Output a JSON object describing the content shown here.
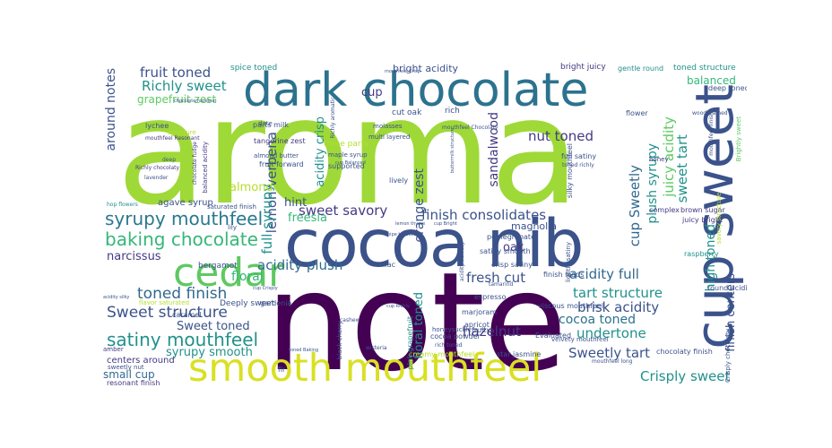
{
  "palette": {
    "c1": "#440154",
    "c2": "#3b528b",
    "c3": "#21918c",
    "c4": "#5ec962",
    "c5": "#b5de2b",
    "c6": "#fde725"
  },
  "words": {
    "aroma": "aroma",
    "note": "note",
    "cocoa_nib": "cocoa nib",
    "dark_chocolate": "dark chocolate",
    "smooth_mouthfeel": "smooth mouthfeel",
    "cup_sweet": "cup sweet",
    "cedar": "cedar",
    "syrupy_mouthfeel": "syrupy mouthfeel",
    "baking_chocolate": "baking chocolate",
    "satiny_mouthfeel": "satiny mouthfeel",
    "sweet_structure": "Sweet structure",
    "toned_finish": "toned finish",
    "finish_consolidates": "finish consolidates",
    "sweet_savory": "sweet savory",
    "acidity_plush": "acidity plush",
    "acidity_full": "acidity full",
    "fresh_cut": "fresh cut",
    "tart_structure": "tart structure",
    "brisk_acidity": "brisk acidity",
    "undertone": "undertone",
    "cocoa_toned": "cocoa toned",
    "hazelnut": "hazelnut",
    "sweetly_tart": "Sweetly tart",
    "crisply_sweet": "Crisply sweet",
    "fruit_toned": "fruit toned",
    "richly_sweet": "Richly sweet",
    "around_notes": "around notes",
    "grapefruit_zest": "grapefruit zest",
    "lemon_verbena": "lemon verbena",
    "full_syrupy": "full syrupy",
    "acidity_crisp": "acidity crisp",
    "orange_zest": "orange zest",
    "sandalwood": "sandalwood",
    "nut_toned": "nut toned",
    "juicy_acidity": "juicy acidity",
    "sweet_tart": "sweet tart",
    "plush_syrupy": "plush syrupy",
    "cup_sweetly": "cup Sweetly",
    "balanced": "balanced",
    "high_toned": "high toned",
    "finish_centers": "finish centers",
    "narcissus": "narcissus",
    "floral": "floral",
    "almond": "almond",
    "hint": "hint",
    "freesia": "freesia",
    "sweet_toned": "Sweet toned",
    "syrupy_smooth": "syrupy smooth",
    "small_cup": "small cup",
    "centers_around": "centers around",
    "resonant_finish": "resonant finish",
    "floral_toned": "floral toned",
    "oak": "oak",
    "magnolia": "magnolia",
    "cup": "cup",
    "bright_acidity": "bright acidity",
    "rich": "rich",
    "cut_oak": "cut oak",
    "spice_toned": "spice toned",
    "bright_juicy": "bright juicy",
    "gentle_round": "gentle round",
    "toned_structure": "toned structure",
    "deep_toned": "deep toned",
    "round_acidity": "round acidity",
    "brown_sugar": "brown sugar",
    "juicy_bright": "juicy bright",
    "raspberry": "raspberry",
    "flower": "flower",
    "honey": "honey",
    "complex": "complex",
    "lychee": "lychee",
    "parts_milk": "parts milk",
    "tangerine_zest": "tangerine zest",
    "three_parts": "three parts",
    "maple_syrup": "maple syrup",
    "supported": "supported",
    "lively": "lively",
    "molasses": "molasses",
    "multi_layered": "multi layered",
    "agave_syrup": "agave syrup",
    "saturated_finish": "saturated finish",
    "bergamot": "bergamot",
    "almond_butter": "almond butter",
    "fruit_forward": "fruit forward",
    "date": "date",
    "structure": "structure",
    "mouthfeel_resonant": "mouthfeel Resonant",
    "deep": "deep",
    "chocolate_fudge": "chocolate fudge",
    "balanced_acidity": "balanced acidity",
    "richly_chocolaty": "Richly chocolaty",
    "lavender": "lavender",
    "hop_flowers": "hop flowers",
    "lily": "lily",
    "gardenia": "gardenia",
    "lilac": "lilac",
    "tamarind": "tamarind",
    "espresso": "espresso",
    "pomegranate": "pomegranate",
    "satiny_smooth": "satiny smooth",
    "crisp_satiny": "crisp satiny",
    "finish_leads": "finish leads",
    "viscous_mouthfeel": "viscous mouthfeel",
    "marjoram": "marjoram",
    "apricot": "apricot",
    "honeysuckle": "honeysuckle",
    "cocoa_powder": "cocoa powder",
    "fruity": "fruity",
    "evaluated": "Evaluated",
    "velvety_mouthfeel": "velvety mouthfeel",
    "star_jasmine": "star jasmine",
    "creamy_mouthfeel": "creamy mouthfeel",
    "mouthfeel_long": "mouthfeel long",
    "chocolaty_finish": "chocolaty finish",
    "crisply_chocolaty": "Crisply chocolaty",
    "deeply_sweet": "Deeply sweet",
    "caramel": "caramel",
    "amber": "amber",
    "sweetly_nut": "sweetly nut",
    "black_cherry": "black cherry",
    "pink_grapefruit": "pink grapefruit",
    "cashew": "cashew",
    "fir": "fir",
    "wisteria": "wisteria",
    "lightly_satiny": "lightly satiny",
    "silky_mouthfeel": "silky mouthfeel",
    "full_satiny": "full satiny",
    "toned_richly": "toned richly",
    "flavor_saturated": "flavor saturated",
    "mouthfeel_chocolaty": "mouthfeel Chocolaty",
    "wood_framed": "wood framed",
    "brightly_sweet": "Brightly sweet",
    "savory_structure": "savory structure",
    "mouthfeel_finish": "mouthfeel finish",
    "acidity_silky": "acidity silky",
    "acidity_velvety": "acidity velvety",
    "mouthfeel_crisp": "mouthfeel Crisp",
    "richly_aromatic": "Richly aromatic",
    "toned_baking": "toned Baking",
    "buttermilk_structure": "buttermilk structure",
    "cup_crisply": "cup Crisply",
    "cup_balanced": "cup Balanced",
    "cup_richly": "cup Richly",
    "rich_toned": "rich toned",
    "lemon_thyme": "lemon thyme",
    "chocolate_hazelnut": "chocolate hazelnut",
    "pipe_tobacco": "pipe tobacco",
    "cup_bright": "cup Bright"
  }
}
